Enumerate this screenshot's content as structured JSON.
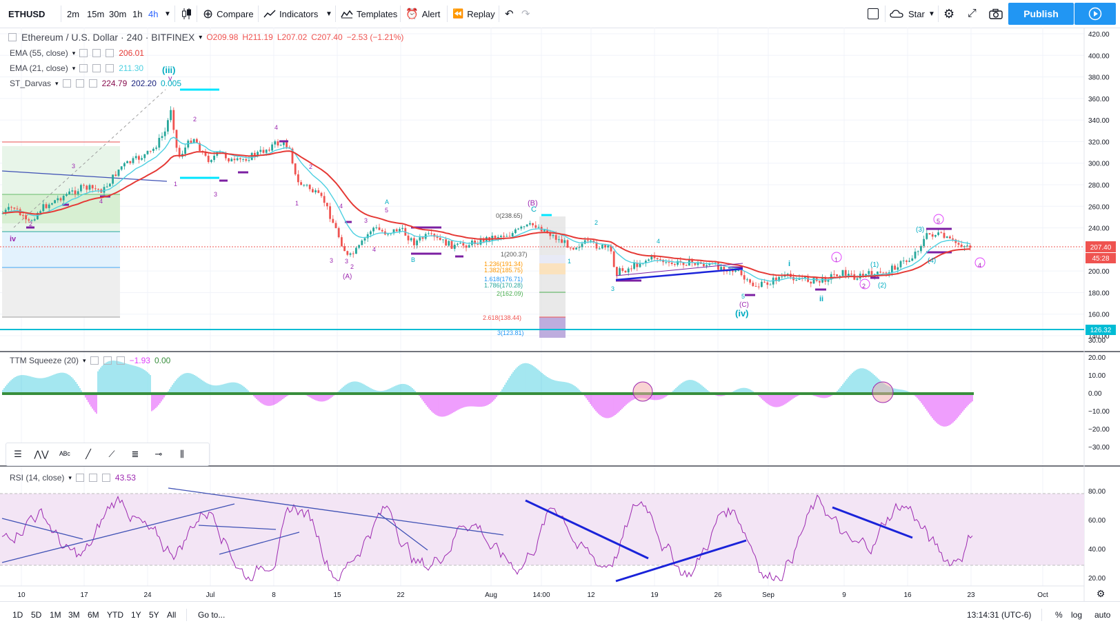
{
  "toolbar": {
    "symbol": "ETHUSD",
    "timeframes": [
      "2m",
      "15m",
      "30m",
      "1h",
      "4h"
    ],
    "active_timeframe": "4h",
    "compare": "Compare",
    "indicators": "Indicators",
    "templates": "Templates",
    "alert": "Alert",
    "replay": "Replay",
    "star": "Star",
    "publish": "Publish"
  },
  "legend": {
    "title": "Ethereum / U.S. Dollar · 240 · BITFINEX",
    "open": "O209.98",
    "high": "H211.19",
    "low": "L207.02",
    "close": "C207.40",
    "change": "−2.53 (−1.21%)",
    "ema55_label": "EMA (55, close)",
    "ema55_value": "206.01",
    "ema21_label": "EMA (21, close)",
    "ema21_value": "211.30",
    "darvas_label": "ST_Darvas",
    "darvas_v1": "224.79",
    "darvas_v2": "202.20",
    "darvas_v3": "0.005",
    "ttm_label": "TTM Squeeze (20)",
    "ttm_v1": "−1.93",
    "ttm_v2": "0.00",
    "rsi_label": "RSI (14, close)",
    "rsi_value": "43.53"
  },
  "price_axis": [
    "420.00",
    "400.00",
    "380.00",
    "360.00",
    "340.00",
    "320.00",
    "300.00",
    "280.00",
    "260.00",
    "240.00",
    "220.00",
    "200.00",
    "180.00",
    "160.00",
    "140.00"
  ],
  "price_tags": {
    "last": "207.40",
    "countdown": "45:28",
    "support": "126.32"
  },
  "ttm_axis": [
    "30.00",
    "20.00",
    "10.00",
    "0.00",
    "−10.00",
    "−20.00",
    "−30.00"
  ],
  "rsi_axis": [
    "80.00",
    "60.00",
    "40.00",
    "20.00"
  ],
  "time_axis": [
    "10",
    "17",
    "24",
    "Jul",
    "8",
    "15",
    "22",
    "Aug",
    "14:00",
    "12",
    "19",
    "26",
    "Sep",
    "9",
    "16",
    "23",
    "Oct"
  ],
  "fib_labels": [
    "0(238.65)",
    "1(200.37)",
    "1.236(191.34)",
    "1.382(185.75)",
    "1.618(176.71)",
    "1.786(170.28)",
    "2(162.09)",
    "2.618(138.44)",
    "3(123.81)"
  ],
  "wave_labels": {
    "iii": "(iii)",
    "v": "v",
    "iv_low": "(iv)",
    "iv_left": "iv",
    "B": "(B)",
    "C": "C",
    "A_paren": "(A)",
    "C_paren": "(C)",
    "ii": "ii",
    "i": "i",
    "three_p": "(3)",
    "four_p": "(4)",
    "one_p": "(1)",
    "two_p": "(2)"
  },
  "bottom": {
    "ranges": [
      "1D",
      "5D",
      "1M",
      "3M",
      "6M",
      "YTD",
      "1Y",
      "5Y",
      "All"
    ],
    "goto": "Go to...",
    "clock": "13:14:31 (UTC-6)",
    "percent": "%",
    "log": "log",
    "auto": "auto"
  },
  "colors": {
    "accent": "#2196f3",
    "up": "#26a69a",
    "down": "#ef5350",
    "ema55": "#e53935",
    "ema21": "#4dd0e1",
    "rsi": "#9c27b0",
    "ttm_pos": "#4dd0e1",
    "ttm_neg": "#e040fb"
  }
}
